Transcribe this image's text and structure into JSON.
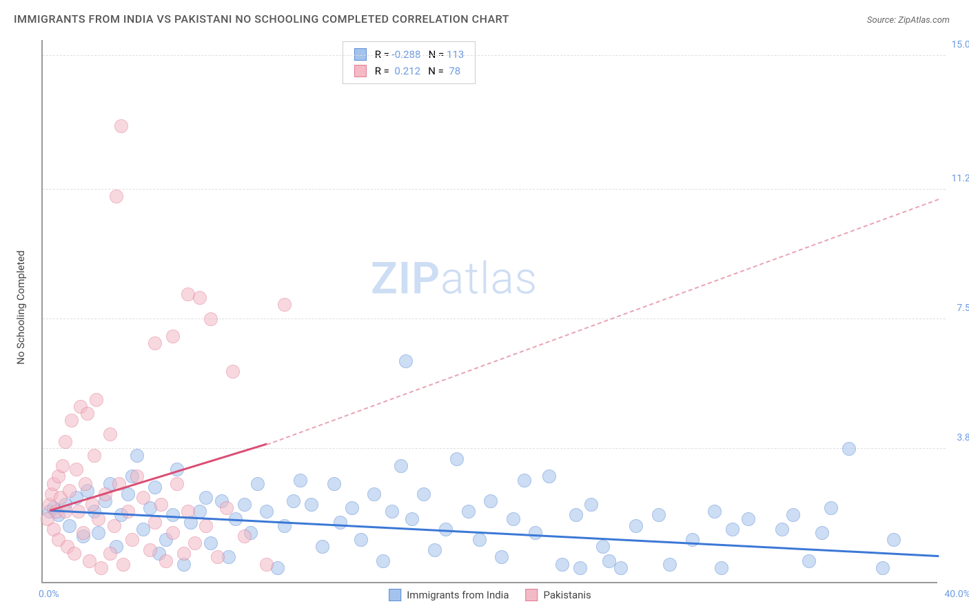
{
  "title": "IMMIGRANTS FROM INDIA VS PAKISTANI NO SCHOOLING COMPLETED CORRELATION CHART",
  "source": "Source: ZipAtlas.com",
  "ylabel": "No Schooling Completed",
  "watermark": {
    "bold": "ZIP",
    "rest": "atlas"
  },
  "chart": {
    "type": "scatter",
    "background": "#ffffff",
    "grid_color": "#dddddd",
    "axis_color": "#999999",
    "label_color": "#6b9ae0",
    "xlim": [
      0,
      40
    ],
    "ylim": [
      0,
      15.5
    ],
    "xtick_min_label": "0.0%",
    "xtick_max_label": "40.0%",
    "yticks": [
      {
        "value": 3.8,
        "label": "3.8%"
      },
      {
        "value": 7.5,
        "label": "7.5%"
      },
      {
        "value": 11.2,
        "label": "11.2%"
      },
      {
        "value": 15.0,
        "label": "15.0%"
      }
    ],
    "marker_radius": 10,
    "marker_opacity": 0.55,
    "series": [
      {
        "name": "Immigrants from India",
        "color_fill": "#a4c3ec",
        "color_stroke": "#5b8bd4",
        "R": "-0.288",
        "N": "113",
        "trend": {
          "x1": 0.3,
          "y1": 2.0,
          "x2": 40,
          "y2": 0.7,
          "style": "solid",
          "color": "#3b78d6"
        },
        "points": [
          [
            0.3,
            2.0
          ],
          [
            0.5,
            2.1
          ],
          [
            0.7,
            1.9
          ],
          [
            1.0,
            2.2
          ],
          [
            1.2,
            1.6
          ],
          [
            1.5,
            2.4
          ],
          [
            1.8,
            1.3
          ],
          [
            2.0,
            2.6
          ],
          [
            2.3,
            2.0
          ],
          [
            2.5,
            1.4
          ],
          [
            2.8,
            2.3
          ],
          [
            3.0,
            2.8
          ],
          [
            3.3,
            1.0
          ],
          [
            3.5,
            1.9
          ],
          [
            3.8,
            2.5
          ],
          [
            4.0,
            3.0
          ],
          [
            4.2,
            3.6
          ],
          [
            4.5,
            1.5
          ],
          [
            4.8,
            2.1
          ],
          [
            5.0,
            2.7
          ],
          [
            5.2,
            0.8
          ],
          [
            5.5,
            1.2
          ],
          [
            5.8,
            1.9
          ],
          [
            6.0,
            3.2
          ],
          [
            6.3,
            0.5
          ],
          [
            6.6,
            1.7
          ],
          [
            7.0,
            2.0
          ],
          [
            7.3,
            2.4
          ],
          [
            7.5,
            1.1
          ],
          [
            8.0,
            2.3
          ],
          [
            8.3,
            0.7
          ],
          [
            8.6,
            1.8
          ],
          [
            9.0,
            2.2
          ],
          [
            9.3,
            1.4
          ],
          [
            9.6,
            2.8
          ],
          [
            10.0,
            2.0
          ],
          [
            10.5,
            0.4
          ],
          [
            10.8,
            1.6
          ],
          [
            11.2,
            2.3
          ],
          [
            11.5,
            2.9
          ],
          [
            12.0,
            2.2
          ],
          [
            12.5,
            1.0
          ],
          [
            13.0,
            2.8
          ],
          [
            13.3,
            1.7
          ],
          [
            13.8,
            2.1
          ],
          [
            14.2,
            1.2
          ],
          [
            14.8,
            2.5
          ],
          [
            15.2,
            0.6
          ],
          [
            15.6,
            2.0
          ],
          [
            16.0,
            3.3
          ],
          [
            16.2,
            6.3
          ],
          [
            16.5,
            1.8
          ],
          [
            17.0,
            2.5
          ],
          [
            17.5,
            0.9
          ],
          [
            18.0,
            1.5
          ],
          [
            18.5,
            3.5
          ],
          [
            19.0,
            2.0
          ],
          [
            19.5,
            1.2
          ],
          [
            20.0,
            2.3
          ],
          [
            20.5,
            0.7
          ],
          [
            21.0,
            1.8
          ],
          [
            21.5,
            2.9
          ],
          [
            22.0,
            1.4
          ],
          [
            22.6,
            3.0
          ],
          [
            23.2,
            0.5
          ],
          [
            23.8,
            1.9
          ],
          [
            24.0,
            0.4
          ],
          [
            24.5,
            2.2
          ],
          [
            25.0,
            1.0
          ],
          [
            25.3,
            0.6
          ],
          [
            25.8,
            0.4
          ],
          [
            26.5,
            1.6
          ],
          [
            27.5,
            1.9
          ],
          [
            28.0,
            0.5
          ],
          [
            29.0,
            1.2
          ],
          [
            30.0,
            2.0
          ],
          [
            30.3,
            0.4
          ],
          [
            30.8,
            1.5
          ],
          [
            31.5,
            1.8
          ],
          [
            33.0,
            1.5
          ],
          [
            33.5,
            1.9
          ],
          [
            34.2,
            0.6
          ],
          [
            34.8,
            1.4
          ],
          [
            35.2,
            2.1
          ],
          [
            36.0,
            3.8
          ],
          [
            37.5,
            0.4
          ],
          [
            38.0,
            1.2
          ]
        ]
      },
      {
        "name": "Pakistanis",
        "color_fill": "#f3b9c5",
        "color_stroke": "#e07a94",
        "R": "0.212",
        "N": "78",
        "trend_solid": {
          "x1": 0.3,
          "y1": 2.0,
          "x2": 10.0,
          "y2": 3.9,
          "style": "solid",
          "color": "#db4d74"
        },
        "trend_dashed": {
          "x1": 10.0,
          "y1": 3.9,
          "x2": 40.0,
          "y2": 10.9,
          "style": "dashed",
          "color": "#e8a3b3"
        },
        "points": [
          [
            0.2,
            1.8
          ],
          [
            0.3,
            2.2
          ],
          [
            0.4,
            2.5
          ],
          [
            0.5,
            1.5
          ],
          [
            0.5,
            2.8
          ],
          [
            0.6,
            2.0
          ],
          [
            0.7,
            3.0
          ],
          [
            0.7,
            1.2
          ],
          [
            0.8,
            2.4
          ],
          [
            0.9,
            3.3
          ],
          [
            1.0,
            2.0
          ],
          [
            1.0,
            4.0
          ],
          [
            1.1,
            1.0
          ],
          [
            1.2,
            2.6
          ],
          [
            1.3,
            4.6
          ],
          [
            1.4,
            0.8
          ],
          [
            1.5,
            3.2
          ],
          [
            1.6,
            2.0
          ],
          [
            1.7,
            5.0
          ],
          [
            1.8,
            1.4
          ],
          [
            1.9,
            2.8
          ],
          [
            2.0,
            4.8
          ],
          [
            2.1,
            0.6
          ],
          [
            2.2,
            2.2
          ],
          [
            2.3,
            3.6
          ],
          [
            2.4,
            5.2
          ],
          [
            2.5,
            1.8
          ],
          [
            2.6,
            0.4
          ],
          [
            2.8,
            2.5
          ],
          [
            3.0,
            4.2
          ],
          [
            3.0,
            0.8
          ],
          [
            3.2,
            1.6
          ],
          [
            3.3,
            11.0
          ],
          [
            3.4,
            2.8
          ],
          [
            3.5,
            13.0
          ],
          [
            3.6,
            0.5
          ],
          [
            3.8,
            2.0
          ],
          [
            4.0,
            1.2
          ],
          [
            4.2,
            3.0
          ],
          [
            4.5,
            2.4
          ],
          [
            4.8,
            0.9
          ],
          [
            5.0,
            1.7
          ],
          [
            5.0,
            6.8
          ],
          [
            5.3,
            2.2
          ],
          [
            5.5,
            0.6
          ],
          [
            5.8,
            1.4
          ],
          [
            5.8,
            7.0
          ],
          [
            6.0,
            2.8
          ],
          [
            6.3,
            0.8
          ],
          [
            6.5,
            2.0
          ],
          [
            6.5,
            8.2
          ],
          [
            6.8,
            1.1
          ],
          [
            7.0,
            8.1
          ],
          [
            7.3,
            1.6
          ],
          [
            7.5,
            7.5
          ],
          [
            7.8,
            0.7
          ],
          [
            8.2,
            2.1
          ],
          [
            8.5,
            6.0
          ],
          [
            9.0,
            1.3
          ],
          [
            10.0,
            0.5
          ],
          [
            10.8,
            7.9
          ]
        ]
      }
    ],
    "bottom_legend": [
      {
        "label": "Immigrants from India",
        "fill": "#a4c3ec",
        "stroke": "#5b8bd4"
      },
      {
        "label": "Pakistanis",
        "fill": "#f3b9c5",
        "stroke": "#e07a94"
      }
    ]
  }
}
